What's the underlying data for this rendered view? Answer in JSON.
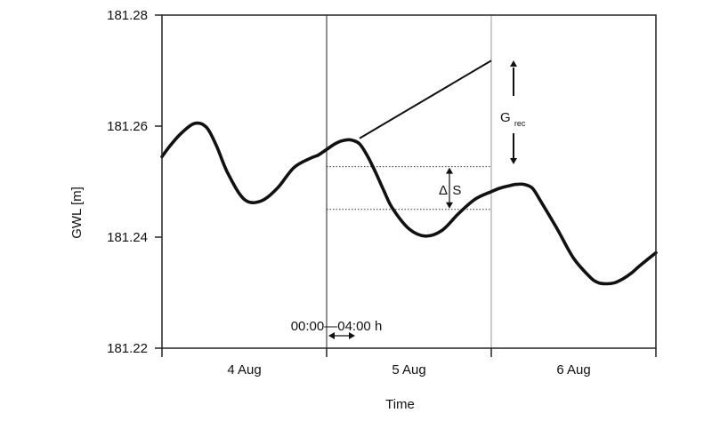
{
  "chart_data": {
    "type": "line",
    "xlabel": "Time",
    "ylabel": "GWL [m]",
    "ylim": [
      181.22,
      181.28
    ],
    "xlim": [
      0,
      3
    ],
    "yticks": [
      "181.22",
      "181.24",
      "181.26",
      "181.28"
    ],
    "ytick_values": [
      181.22,
      181.24,
      181.26,
      181.28
    ],
    "day_labels": [
      "4 Aug",
      "5 Aug",
      "6 Aug"
    ],
    "grid": false,
    "series": [
      {
        "x": [
          0,
          0.05,
          0.12,
          0.2,
          0.27,
          0.33,
          0.4,
          0.5,
          0.6,
          0.7,
          0.8,
          0.9,
          0.95,
          1.0,
          1.05,
          1.1,
          1.15,
          1.2,
          1.25,
          1.3,
          1.35,
          1.4,
          1.5,
          1.6,
          1.7,
          1.8,
          1.9,
          2.0,
          2.05,
          2.1,
          2.15,
          2.2,
          2.25,
          2.3,
          2.4,
          2.5,
          2.6,
          2.65,
          2.7,
          2.75,
          2.8,
          2.85,
          2.9,
          3.0
        ],
        "y": [
          181.2545,
          181.2565,
          181.2588,
          181.2605,
          181.2598,
          181.2565,
          181.2515,
          181.2468,
          181.2465,
          181.2488,
          181.2525,
          181.2542,
          181.2548,
          181.2558,
          181.2568,
          181.2574,
          181.2575,
          181.2568,
          181.2545,
          181.2515,
          181.2482,
          181.2452,
          181.2415,
          181.2402,
          181.2412,
          181.2442,
          181.2468,
          181.2482,
          181.2488,
          181.2492,
          181.2495,
          181.2495,
          181.2488,
          181.2465,
          181.2415,
          181.2362,
          181.2328,
          181.2318,
          181.2316,
          181.2318,
          181.2325,
          181.2335,
          181.2348,
          181.2372
        ]
      }
    ],
    "extrapolation_line": {
      "x": [
        1.2,
        2.0
      ],
      "y": [
        181.2578,
        181.2718
      ]
    },
    "vertical_lines_x": [
      1.0,
      2.0
    ],
    "dotted_levels": {
      "upper": 181.2527,
      "lower": 181.245,
      "x_start": 1.0,
      "x_end": 2.0
    },
    "annotations": {
      "delta_s_symbol": "Δ",
      "delta_s_letter": "S",
      "grec_main": "G",
      "grec_sub": "rec",
      "time_window": "00:00—04:00 h"
    },
    "colors": {
      "line": "#111111",
      "axis": "#222222",
      "dotted": "#333333"
    }
  }
}
